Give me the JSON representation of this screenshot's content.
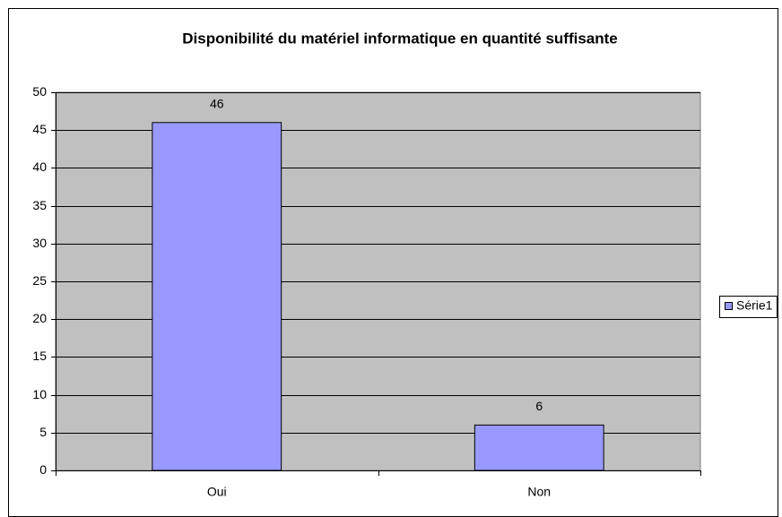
{
  "chart_data": {
    "type": "bar",
    "title": "Disponibilité du matériel informatique en quantité suffisante",
    "categories": [
      "Oui",
      "Non"
    ],
    "series": [
      {
        "name": "Série1",
        "color": "#9999ff",
        "values": [
          46,
          6
        ]
      }
    ],
    "ylim": [
      0,
      50
    ],
    "yticks": [
      0,
      5,
      10,
      15,
      20,
      25,
      30,
      35,
      40,
      45,
      50
    ],
    "grid": true,
    "legend": "right",
    "plot_background": "#c0c0c0"
  }
}
